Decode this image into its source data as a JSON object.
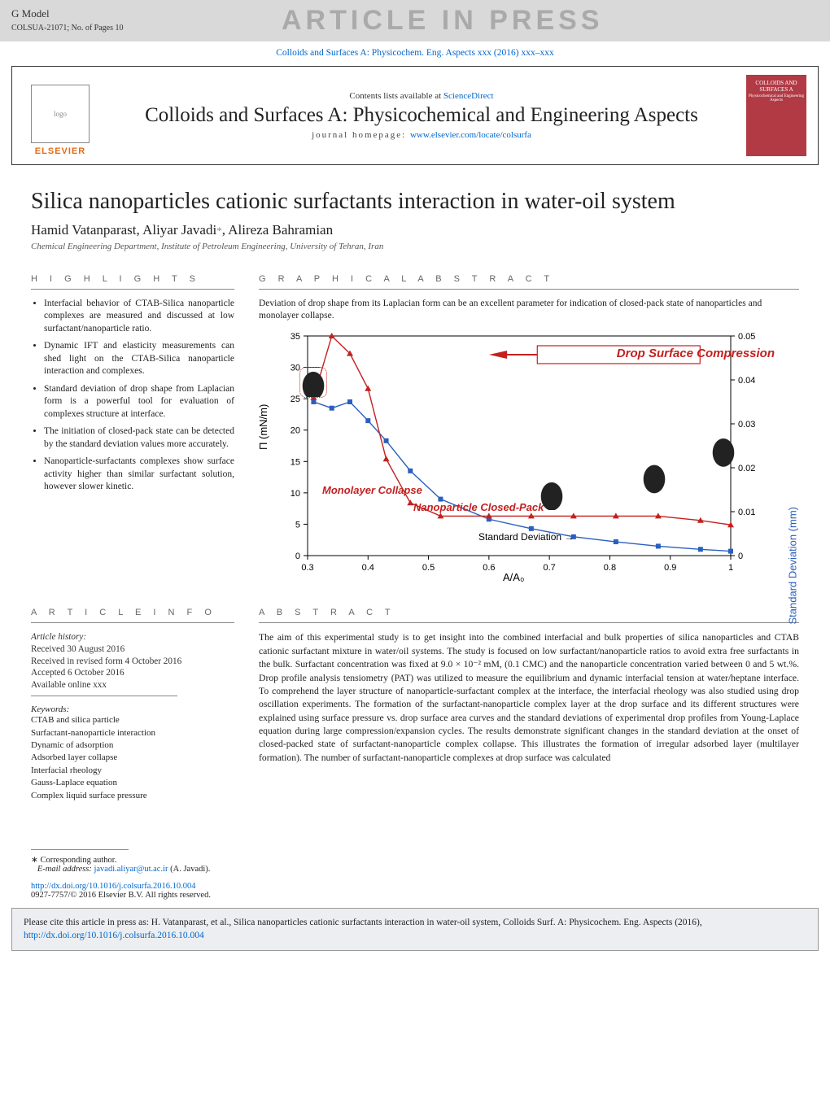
{
  "topbar": {
    "gmodel": "G Model",
    "pages": "COLSUA-21071;   No. of Pages 10",
    "banner": "ARTICLE IN PRESS",
    "journal_line": "Colloids and Surfaces A: Physicochem. Eng. Aspects xxx (2016) xxx–xxx"
  },
  "journalbox": {
    "contents_pre": "Contents lists available at ",
    "contents_link": "ScienceDirect",
    "title": "Colloids and Surfaces A: Physicochemical and Engineering Aspects",
    "hp_pre": "journal homepage: ",
    "hp_link": "www.elsevier.com/locate/colsurfa",
    "elsevier": "ELSEVIER",
    "cover_top": "COLLOIDS AND SURFACES A",
    "cover_mid": "Physicochemical and Engineering Aspects"
  },
  "article": {
    "title": "Silica nanoparticles cationic surfactants interaction in water-oil system",
    "authors_pre": "Hamid Vatanparast, Aliyar Javadi",
    "authors_star": "*",
    "authors_post": ", Alireza Bahramian",
    "affiliation": "Chemical Engineering Department, Institute of Petroleum Engineering, University of Tehran, Iran"
  },
  "highlights": {
    "head": "H I G H L I G H T S",
    "items": [
      "Interfacial behavior of CTAB-Silica nanoparticle complexes are measured and discussed at low surfactant/nanoparticle ratio.",
      "Dynamic IFT and elasticity measurements can shed light on the CTAB-Silica nanoparticle interaction and complexes.",
      "Standard deviation of drop shape from Laplacian form is a powerful tool for evaluation of complexes structure at interface.",
      "The initiation of closed-pack state can be detected by the standard deviation values more accurately.",
      "Nanoparticle-surfactants complexes show surface activity higher than similar surfactant solution, however slower kinetic."
    ]
  },
  "graphabs": {
    "head": "G R A P H I C A L   A B S T R A C T",
    "caption": "Deviation of drop shape from its Laplacian form can be an excellent parameter for indication of closed-pack state of nanoparticles and monolayer collapse.",
    "chart": {
      "type": "dual-axis-line",
      "background_color": "#ffffff",
      "xlabel": "A/A₀",
      "ylabel_left": "Π (mN/m)",
      "ylabel_right": "Standard Deviation (mm)",
      "ylabel_right_color": "#2a5fbf",
      "xlim": [
        0.3,
        1.0
      ],
      "xticks": [
        0.3,
        0.4,
        0.5,
        0.6,
        0.7,
        0.8,
        0.9,
        1.0
      ],
      "ylim_left": [
        0,
        35
      ],
      "yticks_left": [
        0,
        5,
        10,
        15,
        20,
        25,
        30,
        35
      ],
      "ylim_right": [
        0,
        0.05
      ],
      "yticks_right": [
        0,
        0.01,
        0.02,
        0.03,
        0.04,
        0.05
      ],
      "series": [
        {
          "name": "Π",
          "axis": "left",
          "color": "#2a5fbf",
          "marker": "square",
          "x": [
            0.31,
            0.34,
            0.37,
            0.4,
            0.43,
            0.47,
            0.52,
            0.6,
            0.67,
            0.74,
            0.81,
            0.88,
            0.95,
            1.0
          ],
          "y": [
            24.5,
            23.5,
            24.5,
            21.5,
            18.3,
            13.5,
            9.0,
            5.8,
            4.3,
            3.0,
            2.2,
            1.5,
            1.0,
            0.7
          ]
        },
        {
          "name": "SD",
          "axis": "right",
          "color": "#c42020",
          "marker": "triangle",
          "x": [
            0.31,
            0.34,
            0.37,
            0.4,
            0.43,
            0.47,
            0.52,
            0.6,
            0.67,
            0.74,
            0.81,
            0.88,
            0.95,
            1.0
          ],
          "y": [
            0.036,
            0.05,
            0.046,
            0.038,
            0.022,
            0.012,
            0.009,
            0.009,
            0.009,
            0.009,
            0.009,
            0.009,
            0.008,
            0.007
          ]
        }
      ],
      "annotations": {
        "title_box": "Drop Surface Compression",
        "title_box_color": "#c42020",
        "monolayer": "Monolayer Collapse",
        "nanoparticle": "Nanoparticle Closed-Pack",
        "sd_arrow": "Standard Deviation"
      },
      "label_fontsize": 12,
      "tick_fontsize": 11
    }
  },
  "articleinfo": {
    "head": "A R T I C L E   I N F O",
    "history_h": "Article history:",
    "received": "Received 30 August 2016",
    "revised": "Received in revised form 4 October 2016",
    "accepted": "Accepted 6 October 2016",
    "online": "Available online xxx",
    "kw_h": "Keywords:",
    "keywords": [
      "CTAB and silica particle",
      "Surfactant-nanoparticle interaction",
      "Dynamic of adsorption",
      "Adsorbed layer collapse",
      "Interfacial rheology",
      "Gauss-Laplace equation",
      "Complex liquid surface pressure"
    ]
  },
  "abstract": {
    "head": "A B S T R A C T",
    "text": "The aim of this experimental study is to get insight into the combined interfacial and bulk properties of silica nanoparticles and CTAB cationic surfactant mixture in water/oil systems. The study is focused on low surfactant/nanoparticle ratios to avoid extra free surfactants in the bulk. Surfactant concentration was fixed at 9.0 × 10⁻² mM, (0.1 CMC) and the nanoparticle concentration varied between 0 and 5 wt.%. Drop profile analysis tensiometry (PAT) was utilized to measure the equilibrium and dynamic interfacial tension at water/heptane interface. To comprehend the layer structure of nanoparticle-surfactant complex at the interface, the interfacial rheology was also studied using drop oscillation experiments. The formation of the surfactant-nanoparticle complex layer at the drop surface and its different structures were explained using surface pressure vs. drop surface area curves and the standard deviations of experimental drop profiles from Young-Laplace equation during large compression/expansion cycles. The results demonstrate significant changes in the standard deviation at the onset of closed-packed state of surfactant-nanoparticle complex collapse. This illustrates the formation of irregular adsorbed layer (multilayer formation). The number of surfactant-nanoparticle complexes at drop surface was calculated"
  },
  "footnotes": {
    "corr": "Corresponding author.",
    "email_lbl": "E-mail address: ",
    "email": "javadi.aliyar@ut.ac.ir",
    "email_post": " (A. Javadi)."
  },
  "doi": {
    "url": "http://dx.doi.org/10.1016/j.colsurfa.2016.10.004",
    "issn": "0927-7757/© 2016 Elsevier B.V. All rights reserved."
  },
  "cite": {
    "text_pre": "Please cite this article in press as: H. Vatanparast, et al., Silica nanoparticles cationic surfactants interaction in water-oil system, Colloids Surf. A: Physicochem. Eng. Aspects (2016), ",
    "link": "http://dx.doi.org/10.1016/j.colsurfa.2016.10.004"
  }
}
